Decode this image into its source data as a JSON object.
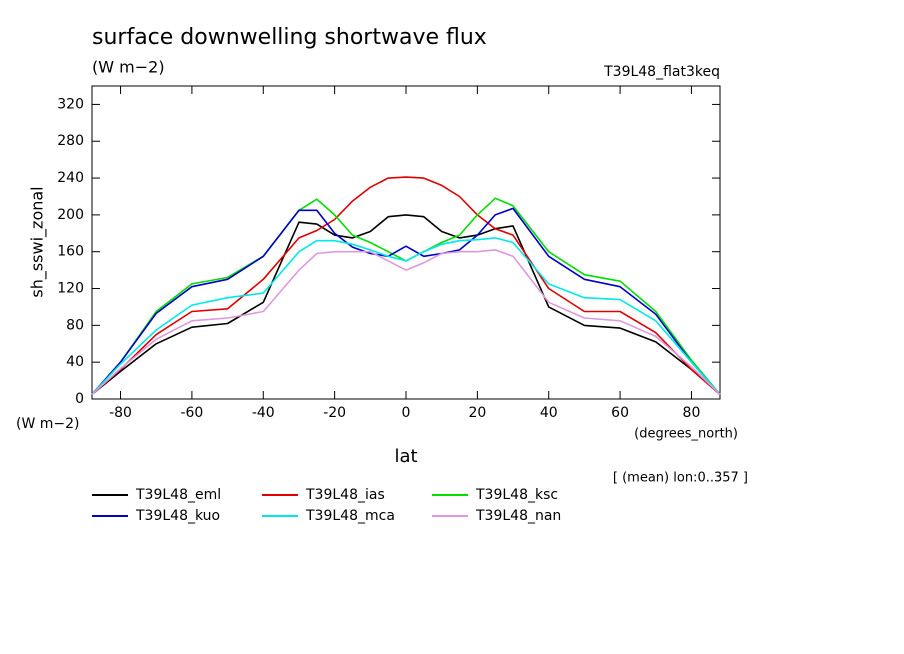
{
  "chart_data": {
    "type": "line",
    "title": "surface downwelling shortwave flux",
    "subtitle": "(W m−2)",
    "experiment": "T39L48_flat3keq",
    "y_label": "sh_sswi_zonal",
    "y_units": "(W m−2)",
    "x_units": "(degrees_north)",
    "x_label": "lat",
    "note": "[ (mean) lon:0..357 ]",
    "xlim": [
      -88,
      88
    ],
    "ylim": [
      0,
      340
    ],
    "xticks": [
      -80,
      -60,
      -40,
      -20,
      0,
      20,
      40,
      60,
      80
    ],
    "yticks": [
      0,
      40,
      80,
      120,
      160,
      200,
      240,
      280,
      320
    ],
    "x": [
      -88,
      -80,
      -70,
      -60,
      -50,
      -40,
      -30,
      -25,
      -20,
      -15,
      -10,
      -5,
      0,
      5,
      10,
      15,
      20,
      25,
      30,
      40,
      50,
      60,
      70,
      80,
      88
    ],
    "series": [
      {
        "name": "T39L48_eml",
        "color": "#000000",
        "values": [
          5,
          30,
          60,
          78,
          82,
          105,
          192,
          190,
          178,
          175,
          182,
          198,
          200,
          198,
          182,
          175,
          178,
          185,
          188,
          100,
          80,
          77,
          62,
          32,
          5
        ]
      },
      {
        "name": "T39L48_ias",
        "color": "#e00000",
        "values": [
          5,
          32,
          70,
          95,
          98,
          130,
          175,
          183,
          195,
          215,
          230,
          240,
          241,
          240,
          232,
          220,
          200,
          185,
          178,
          120,
          95,
          95,
          72,
          32,
          5
        ]
      },
      {
        "name": "T39L48_ksc",
        "color": "#00dd00",
        "values": [
          5,
          40,
          95,
          125,
          132,
          155,
          205,
          217,
          200,
          178,
          170,
          160,
          150,
          160,
          170,
          178,
          200,
          218,
          210,
          160,
          135,
          128,
          95,
          42,
          5
        ]
      },
      {
        "name": "T39L48_kuo",
        "color": "#0000cc",
        "values": [
          5,
          40,
          93,
          122,
          130,
          155,
          205,
          205,
          180,
          165,
          158,
          155,
          166,
          155,
          158,
          162,
          178,
          200,
          207,
          155,
          130,
          122,
          92,
          40,
          5
        ]
      },
      {
        "name": "T39L48_mca",
        "color": "#00e8e8",
        "values": [
          5,
          38,
          75,
          102,
          110,
          115,
          160,
          172,
          172,
          168,
          162,
          155,
          150,
          160,
          168,
          172,
          173,
          175,
          170,
          125,
          110,
          108,
          85,
          40,
          5
        ]
      },
      {
        "name": "T39L48_nan",
        "color": "#dd99dd",
        "values": [
          5,
          33,
          65,
          85,
          88,
          95,
          140,
          158,
          160,
          160,
          160,
          150,
          140,
          148,
          158,
          160,
          160,
          162,
          155,
          105,
          88,
          85,
          68,
          35,
          5
        ]
      }
    ]
  }
}
